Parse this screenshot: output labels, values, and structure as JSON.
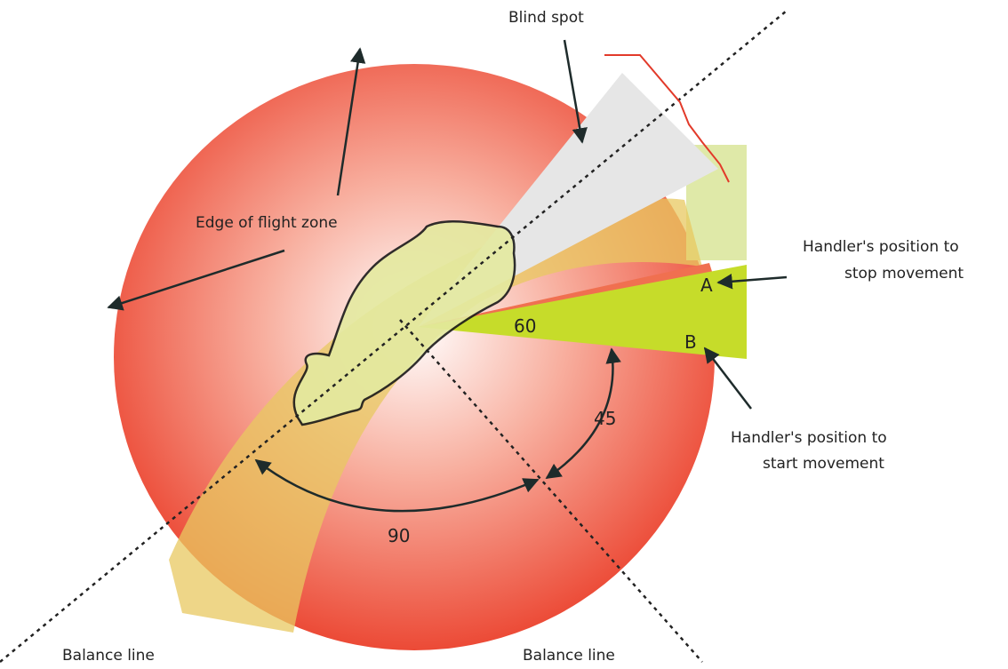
{
  "labels": {
    "blind_spot": "Blind spot",
    "flight_zone_edge": "Edge of flight zone",
    "handler_stop": [
      "Handler's position to",
      "stop movement"
    ],
    "handler_start": [
      "Handler's position to",
      "start movement"
    ],
    "point_a": "A",
    "point_b": "B",
    "angle_60": "60",
    "angle_45": "45",
    "angle_90": "90",
    "balance_line_left": "Balance line",
    "balance_line_right": "Balance line"
  }
}
